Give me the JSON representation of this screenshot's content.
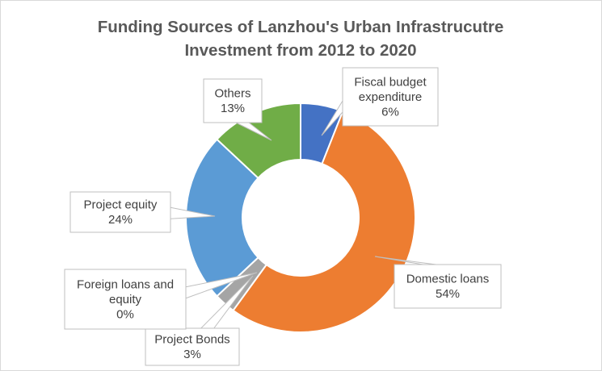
{
  "chart_data": {
    "type": "pie",
    "style": "doughnut",
    "title": "Funding Sources of Lanzhou's Urban Infrastrucutre Investment from 2012 to 2020",
    "title_lines": [
      "Funding Sources of Lanzhou's Urban Infrastrucutre",
      "Investment from 2012 to 2020"
    ],
    "legend": "none",
    "slices": [
      {
        "name": "Fiscal budget expenditure",
        "label_lines": [
          "Fiscal budget",
          "expenditure"
        ],
        "value": 6,
        "value_label": "6%",
        "color": "#4472C4"
      },
      {
        "name": "Domestic loans",
        "label_lines": [
          "Domestic loans"
        ],
        "value": 54,
        "value_label": "54%",
        "color": "#ED7D31"
      },
      {
        "name": "Project Bonds",
        "label_lines": [
          "Project Bonds"
        ],
        "value": 3,
        "value_label": "3%",
        "color": "#A5A5A5"
      },
      {
        "name": "Foreign loans and equity",
        "label_lines": [
          "Foreign loans and",
          "equity"
        ],
        "value": 0,
        "value_label": "0%",
        "color": "#FFC000"
      },
      {
        "name": "Project equity",
        "label_lines": [
          "Project equity"
        ],
        "value": 24,
        "value_label": "24%",
        "color": "#5B9BD5"
      },
      {
        "name": "Others",
        "label_lines": [
          "Others"
        ],
        "value": 13,
        "value_label": "13%",
        "color": "#70AD47"
      }
    ]
  }
}
